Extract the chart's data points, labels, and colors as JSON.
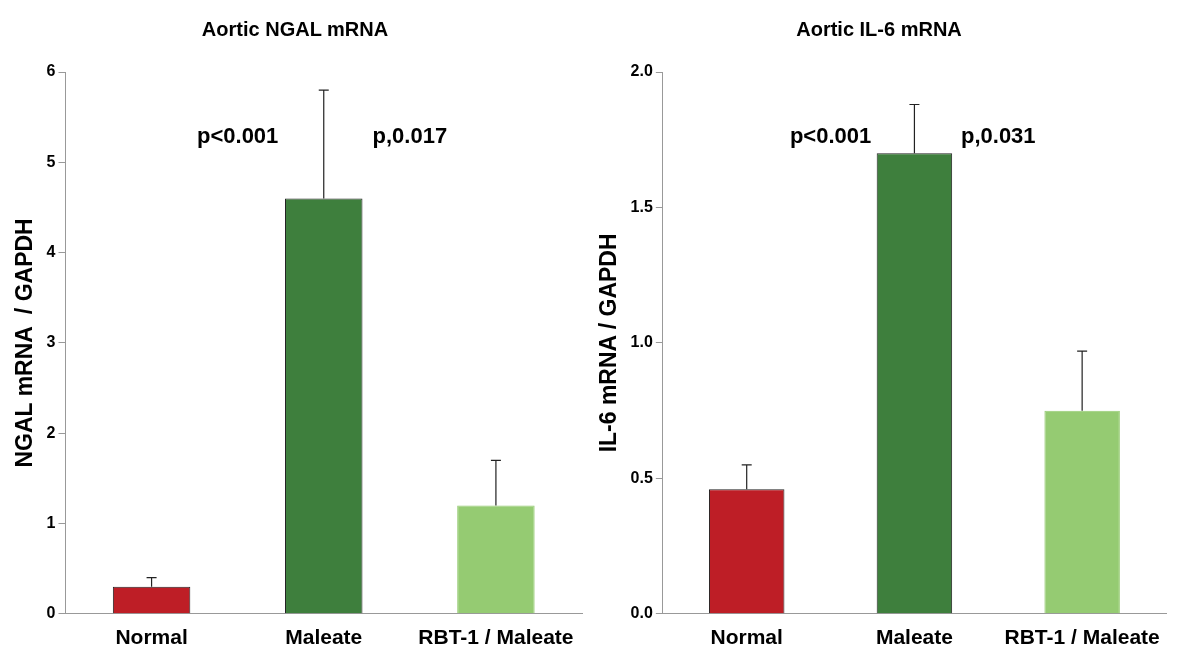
{
  "chart_data": [
    {
      "type": "bar",
      "title": "Aortic NGAL mRNA",
      "ylabel": "NGAL mRNA  / GAPDH",
      "categories": [
        "Normal",
        "Maleate",
        "RBT-1 / Maleate"
      ],
      "values": [
        0.3,
        4.6,
        1.2
      ],
      "colors": [
        "#be1e26",
        "#3e7f3d",
        "#95cb72"
      ],
      "errors": [
        [
          0.3,
          0.4
        ],
        [
          4.6,
          5.8
        ],
        [
          1.2,
          1.7
        ]
      ],
      "ylim": [
        0,
        6
      ],
      "yticks": [
        0,
        1,
        2,
        3,
        4,
        5,
        6
      ],
      "grid": false,
      "legend": false,
      "annotations": [
        "p<0.001",
        "p,0.017"
      ]
    },
    {
      "type": "bar",
      "title": "Aortic IL-6 mRNA",
      "ylabel": "IL-6 mRNA / GAPDH",
      "categories": [
        "Normal",
        "Maleate",
        "RBT-1 / Maleate"
      ],
      "values": [
        0.46,
        1.7,
        0.75
      ],
      "colors": [
        "#be1e26",
        "#3e7f3d",
        "#95cb72"
      ],
      "errors": [
        [
          0.46,
          0.55
        ],
        [
          1.7,
          1.88
        ],
        [
          0.75,
          0.97
        ]
      ],
      "ylim": [
        0,
        2
      ],
      "yticks": [
        {
          "value": 0,
          "label": "0.0"
        },
        {
          "value": 0.5,
          "label": "0.5"
        },
        {
          "value": 1,
          "label": "1.0"
        },
        {
          "value": 1.5,
          "label": "1.5"
        },
        {
          "value": 2,
          "label": "2.0"
        }
      ],
      "grid": false,
      "legend": false,
      "annotations": [
        "p<0.001",
        "p,0.031"
      ]
    }
  ]
}
